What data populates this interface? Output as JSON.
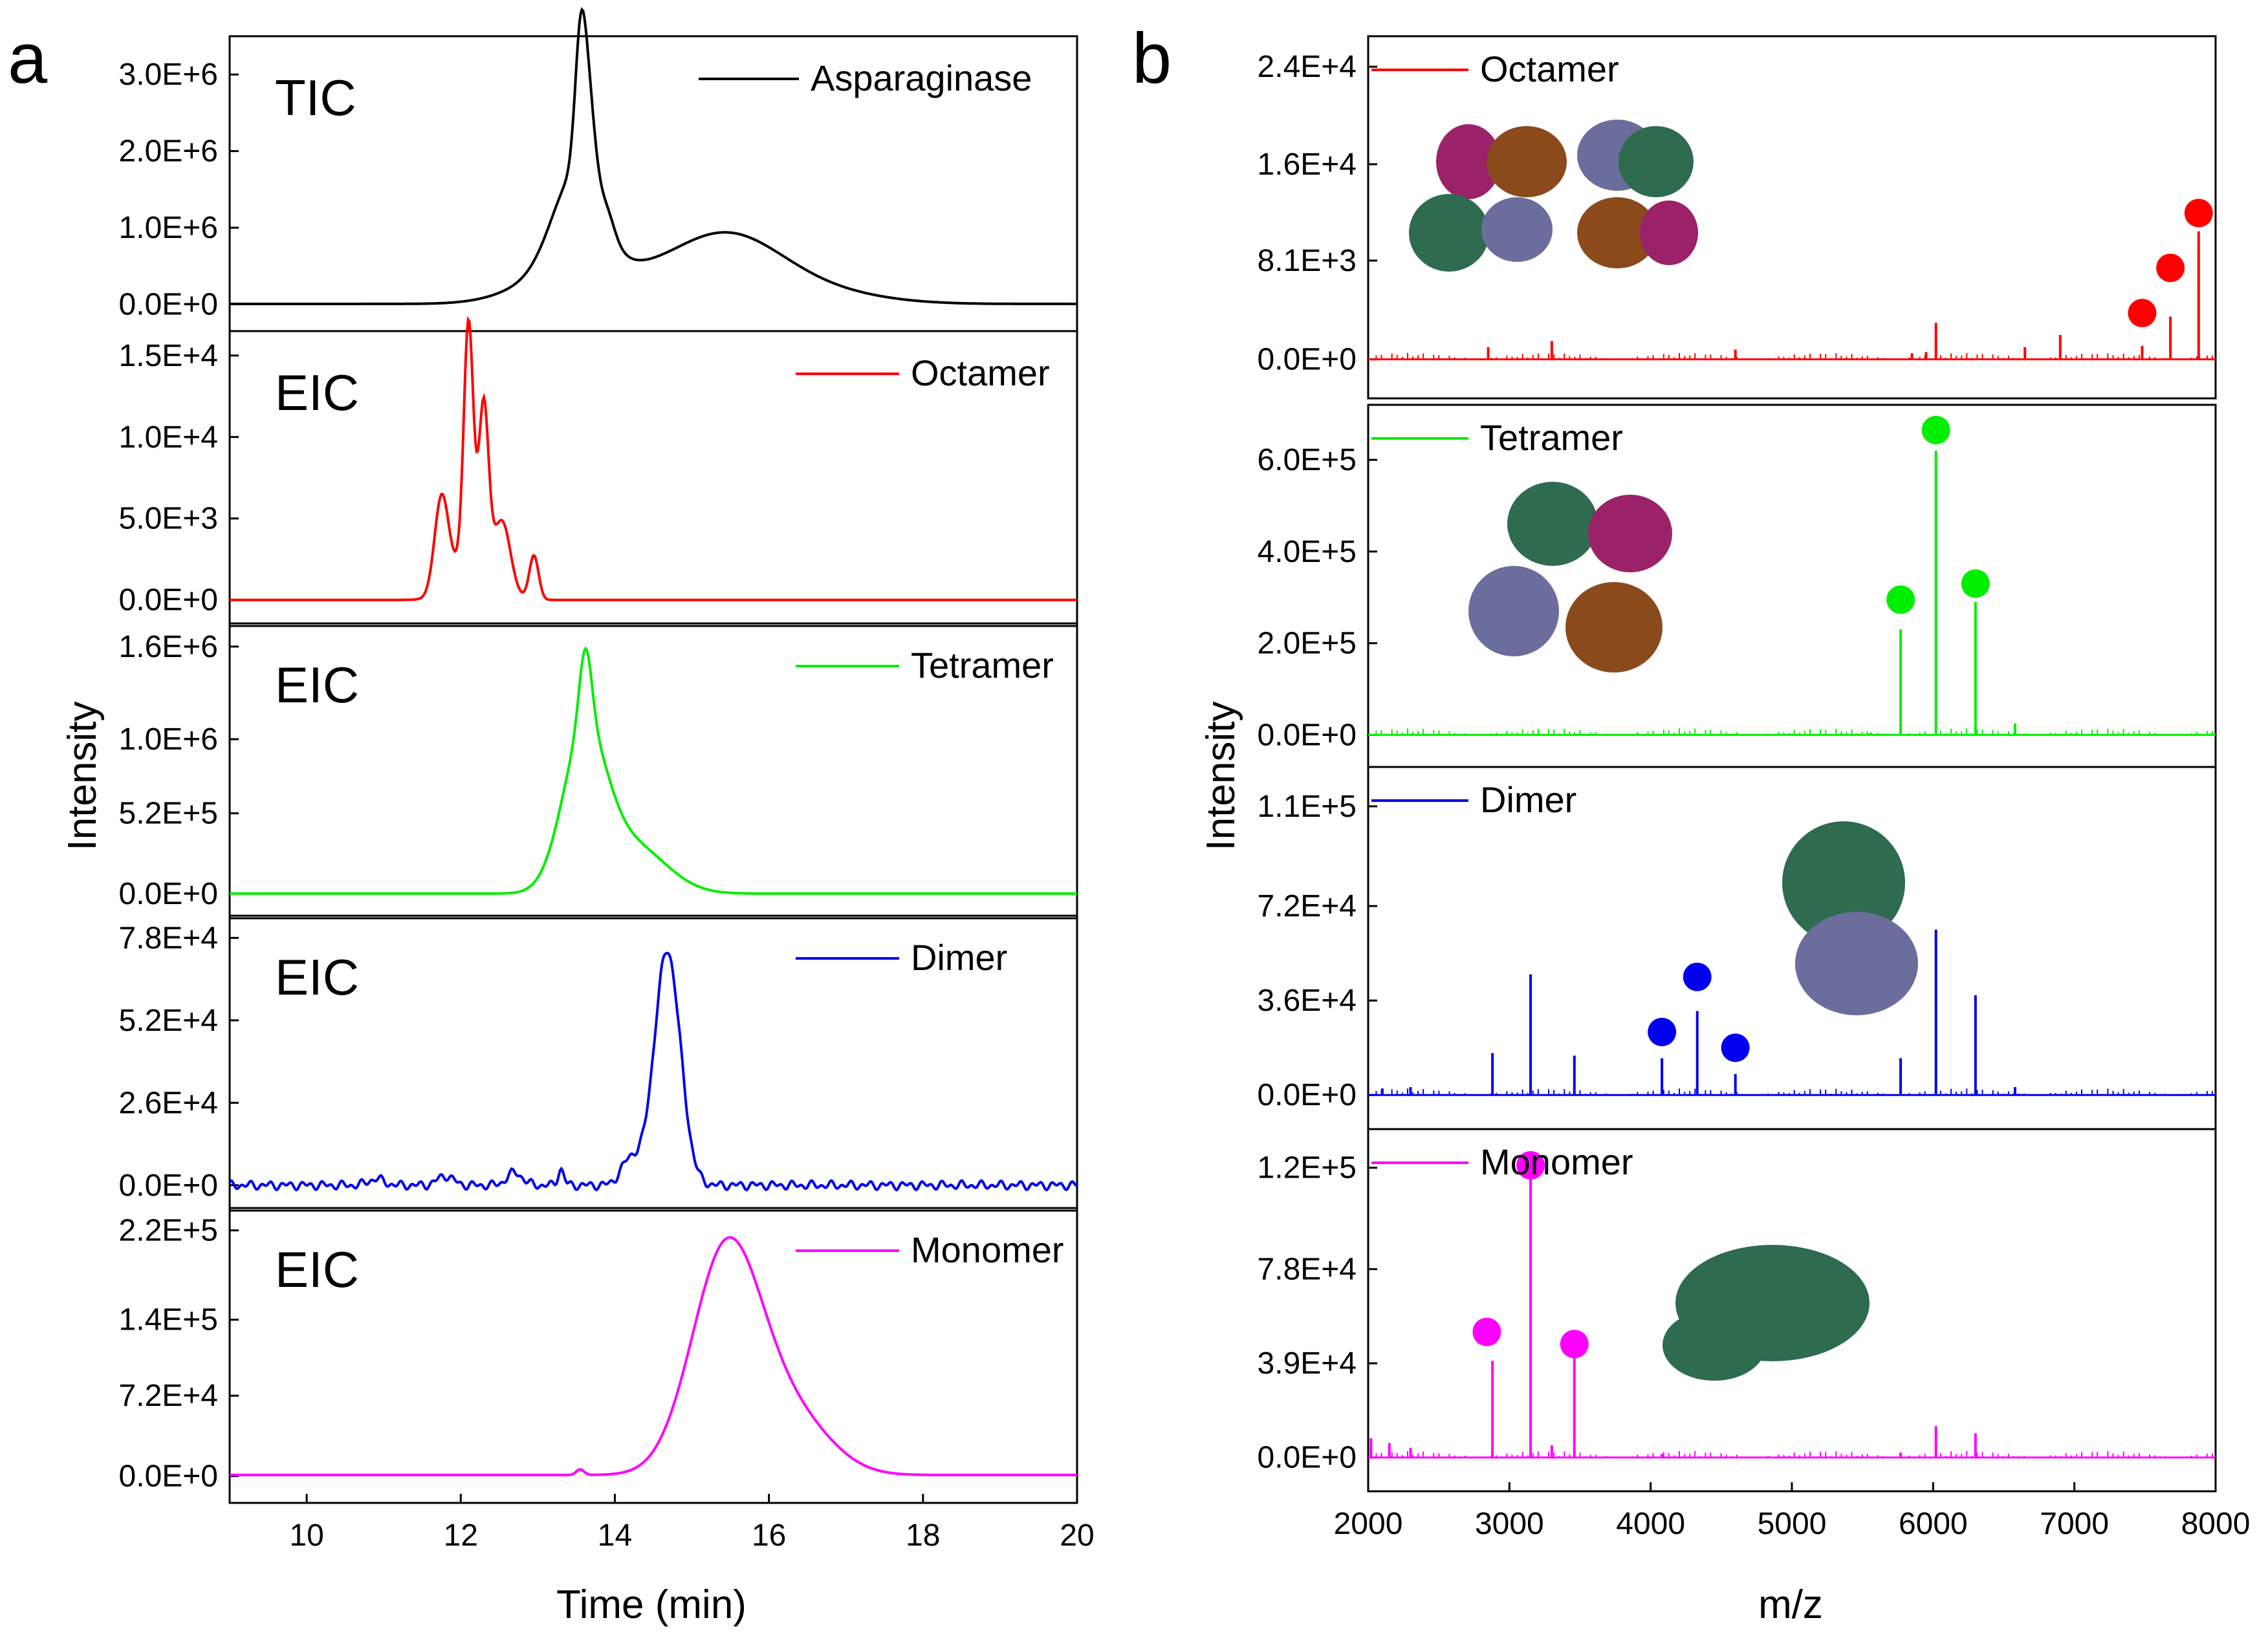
{
  "panel_labels": {
    "a": "a",
    "b": "b"
  },
  "panel_a": {
    "ylabel": "Intensity",
    "xlabel": "Time (min)",
    "xticks": [
      "10",
      "12",
      "14",
      "16",
      "18",
      "20"
    ]
  },
  "panel_b": {
    "ylabel": "Intensity",
    "xlabel": "m/z",
    "xticks": [
      "2000",
      "3000",
      "4000",
      "5000",
      "6000",
      "7000",
      "8000"
    ]
  },
  "chart_data": [
    {
      "type": "line",
      "panel": "a",
      "tag": "TIC",
      "x_range": [
        9,
        20
      ],
      "ylim": [
        -350000.0,
        3500000.0
      ],
      "ytick_labels": [
        "0.0E+0",
        "1.0E+6",
        "2.0E+6",
        "3.0E+6"
      ],
      "ytick_values": [
        0,
        1000000,
        2000000,
        3000000
      ],
      "series": [
        {
          "name": "Asparaginase",
          "color": "#000000",
          "peaks": [
            [
              13.55,
              0.07,
              1400000.0
            ],
            [
              13.65,
              0.09,
              1200000.0
            ],
            [
              13.5,
              0.3,
              1200000.0
            ],
            [
              13.4,
              0.6,
              400000.0
            ],
            [
              13.9,
              0.1,
              250000.0
            ],
            [
              15.5,
              0.7,
              650000.0
            ],
            [
              14.8,
              0.9,
              300000.0
            ],
            [
              16.6,
              0.8,
              150000.0
            ]
          ],
          "baseline": 5000
        }
      ]
    },
    {
      "type": "line",
      "panel": "a",
      "tag": "EIC",
      "x_range": [
        9,
        20
      ],
      "ylim": [
        -1600.0,
        16500.0
      ],
      "ytick_labels": [
        "0.0E+0",
        "5.0E+3",
        "1.0E+4",
        "1.5E+4"
      ],
      "ytick_values": [
        0,
        5000,
        10000,
        15000
      ],
      "series": [
        {
          "name": "Octamer",
          "color": "#ff0000",
          "peaks": [
            [
              11.75,
              0.09,
              5800
            ],
            [
              12.1,
              0.06,
              14000
            ],
            [
              12.3,
              0.06,
              9000
            ],
            [
              12.2,
              0.25,
              3500
            ],
            [
              12.55,
              0.1,
              3500
            ],
            [
              12.95,
              0.06,
              2700
            ]
          ],
          "baseline": 0
        }
      ]
    },
    {
      "type": "line",
      "panel": "a",
      "tag": "EIC",
      "x_range": [
        9,
        20
      ],
      "ylim": [
        -160000.0,
        1750000.0
      ],
      "ytick_labels": [
        "0.0E+0",
        "5.2E+5",
        "1.0E+6",
        "1.6E+6"
      ],
      "ytick_values": [
        0,
        520000,
        1000000,
        1600000
      ],
      "series": [
        {
          "name": "Tetramer",
          "color": "#00ee00",
          "peaks": [
            [
              13.62,
              0.08,
              500000.0
            ],
            [
              13.6,
              0.28,
              950000.0
            ],
            [
              14.2,
              0.45,
              320000.0
            ]
          ],
          "baseline": 0
        }
      ]
    },
    {
      "type": "line",
      "panel": "a",
      "tag": "EIC",
      "x_range": [
        9,
        20
      ],
      "ylim": [
        -8000.0,
        85000.0
      ],
      "ytick_labels": [
        "0.0E+0",
        "2.6E+4",
        "5.2E+4",
        "7.8E+4"
      ],
      "ytick_values": [
        0,
        26000,
        52000,
        78000
      ],
      "series": [
        {
          "name": "Dimer",
          "color": "#0000ee",
          "peaks": [
            [
              14.68,
              0.17,
              74000
            ],
            [
              14.2,
              0.12,
              8000
            ],
            [
              13.3,
              0.04,
              5000
            ],
            [
              12.7,
              0.1,
              4000
            ],
            [
              11.8,
              0.1,
              3000
            ],
            [
              10.9,
              0.1,
              2000
            ]
          ],
          "baseline": 0,
          "noise": 1500
        }
      ]
    },
    {
      "type": "line",
      "panel": "a",
      "tag": "EIC",
      "x_range": [
        9,
        20
      ],
      "ylim": [
        -24000.0,
        240000.0
      ],
      "ytick_labels": [
        "0.0E+0",
        "7.2E+4",
        "1.4E+5",
        "2.2E+5"
      ],
      "ytick_values": [
        0,
        72000,
        140000,
        220000
      ],
      "series": [
        {
          "name": "Monomer",
          "color": "#ff00ff",
          "peaks": [
            [
              15.45,
              0.45,
              200000.0
            ],
            [
              16.3,
              0.5,
              50000.0
            ],
            [
              13.55,
              0.05,
              5000
            ]
          ],
          "baseline": 1000
        }
      ]
    },
    {
      "type": "bar",
      "panel": "b",
      "x_range": [
        2000,
        8000
      ],
      "ylim": [
        -3200.0,
        26500.0
      ],
      "ytick_labels": [
        "0.0E+0",
        "8.1E+3",
        "1.6E+4",
        "2.4E+4"
      ],
      "ytick_values": [
        0,
        8100,
        16000,
        24000
      ],
      "series": [
        {
          "name": "Octamer",
          "color": "#ff0000",
          "sticks": [
            [
              7480,
              1100
            ],
            [
              7680,
              3500
            ],
            [
              7880,
              10500
            ],
            [
              6020,
              3000
            ],
            [
              6900,
              2000
            ],
            [
              6650,
              1000
            ],
            [
              5850,
              500
            ],
            [
              3300,
              1500
            ],
            [
              2850,
              1000
            ],
            [
              4600,
              800
            ],
            [
              5950,
              600
            ]
          ],
          "markers": [
            [
              7480,
              3800
            ],
            [
              7680,
              7500
            ],
            [
              7880,
              12000
            ]
          ]
        }
      ]
    },
    {
      "type": "bar",
      "panel": "b",
      "x_range": [
        2000,
        8000
      ],
      "ylim": [
        -70000.0,
        720000.0
      ],
      "ytick_labels": [
        "0.0E+0",
        "2.0E+5",
        "4.0E+5",
        "6.0E+5"
      ],
      "ytick_values": [
        0,
        200000,
        400000,
        600000
      ],
      "series": [
        {
          "name": "Tetramer",
          "color": "#00ee00",
          "sticks": [
            [
              5770,
              230000
            ],
            [
              6020,
              620000
            ],
            [
              6300,
              290000
            ],
            [
              6580,
              25000
            ],
            [
              5560,
              5000
            ]
          ],
          "markers": [
            [
              5770,
              295000
            ],
            [
              6020,
              665000
            ],
            [
              6300,
              330000
            ]
          ]
        }
      ]
    },
    {
      "type": "bar",
      "panel": "b",
      "x_range": [
        2000,
        8000
      ],
      "ylim": [
        -13000.0,
        125000.0
      ],
      "ytick_labels": [
        "0.0E+0",
        "3.6E+4",
        "7.2E+4",
        "1.1E+5"
      ],
      "ytick_values": [
        0,
        36000,
        72000,
        110000
      ],
      "series": [
        {
          "name": "Dimer",
          "color": "#0000ee",
          "sticks": [
            [
              2880,
              16000
            ],
            [
              3150,
              46000
            ],
            [
              3460,
              15000
            ],
            [
              4080,
              14000
            ],
            [
              4330,
              32000
            ],
            [
              4600,
              8000
            ],
            [
              5770,
              14000
            ],
            [
              6020,
              63000
            ],
            [
              6300,
              38000
            ],
            [
              6580,
              3000
            ],
            [
              2300,
              3000
            ],
            [
              2100,
              2500
            ]
          ],
          "markers": [
            [
              4080,
              24000
            ],
            [
              4330,
              45000
            ],
            [
              4600,
              18000
            ]
          ]
        }
      ]
    },
    {
      "type": "bar",
      "panel": "b",
      "x_range": [
        2000,
        8000
      ],
      "ylim": [
        -14000.0,
        136000.0
      ],
      "ytick_labels": [
        "0.0E+0",
        "3.9E+4",
        "7.8E+4",
        "1.2E+5"
      ],
      "ytick_values": [
        0,
        39000,
        78000,
        120000
      ],
      "series": [
        {
          "name": "Monomer",
          "color": "#ff00ff",
          "sticks": [
            [
              2880,
              40000
            ],
            [
              3150,
              116000
            ],
            [
              3460,
              44000
            ],
            [
              6020,
              13000
            ],
            [
              6300,
              10000
            ],
            [
              2020,
              8000
            ],
            [
              2150,
              6000
            ],
            [
              2300,
              4000
            ],
            [
              3300,
              5000
            ],
            [
              4080,
              1500
            ],
            [
              5770,
              2000
            ]
          ],
          "markers": [
            [
              2840,
              52000
            ],
            [
              3150,
              121000
            ],
            [
              3460,
              47000
            ]
          ]
        }
      ]
    }
  ],
  "colors": {
    "frame": "#000000",
    "background": "#ffffff"
  },
  "icons": {
    "structure_images": [
      "octamer-structure-icon",
      "tetramer-structure-icon",
      "dimer-structure-icon",
      "monomer-structure-icon"
    ]
  }
}
